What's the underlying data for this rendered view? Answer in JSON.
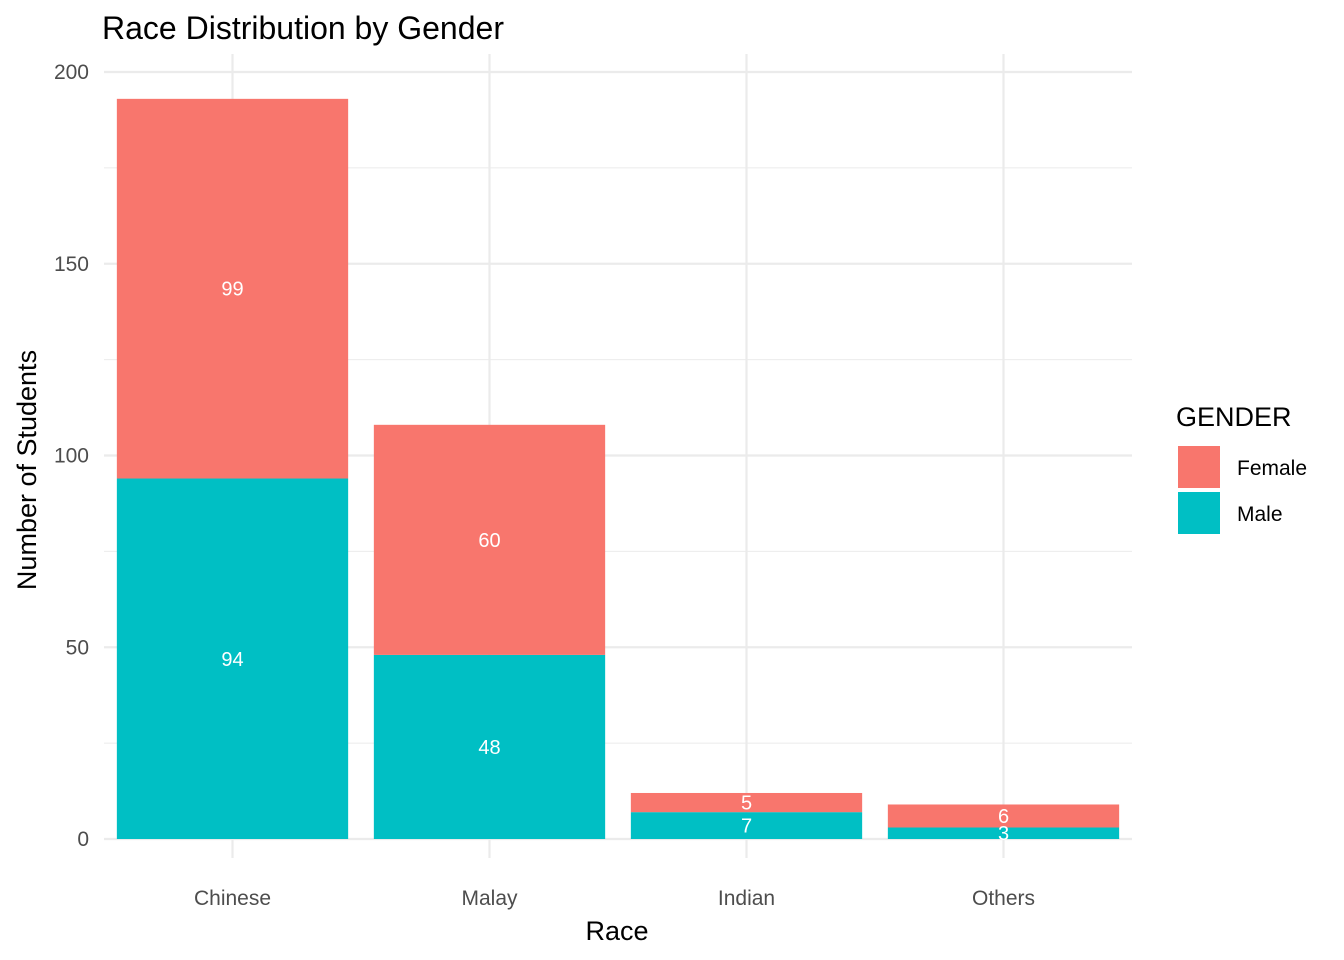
{
  "chart_data": {
    "type": "bar",
    "stacked": true,
    "title": "Race Distribution by Gender",
    "xlabel": "Race",
    "ylabel": "Number of Students",
    "categories": [
      "Chinese",
      "Malay",
      "Indian",
      "Others"
    ],
    "series": [
      {
        "name": "Female",
        "values": [
          99,
          60,
          5,
          6
        ],
        "color": "#F8766D"
      },
      {
        "name": "Male",
        "values": [
          94,
          48,
          7,
          3
        ],
        "color": "#00BFC4"
      }
    ],
    "stack_order_bottom_to_top": [
      "Male",
      "Female"
    ],
    "ylim": [
      0,
      200
    ],
    "y_ticks": [
      0,
      50,
      100,
      150,
      200
    ],
    "grid": true,
    "legend": {
      "title": "GENDER",
      "position": "right"
    }
  }
}
